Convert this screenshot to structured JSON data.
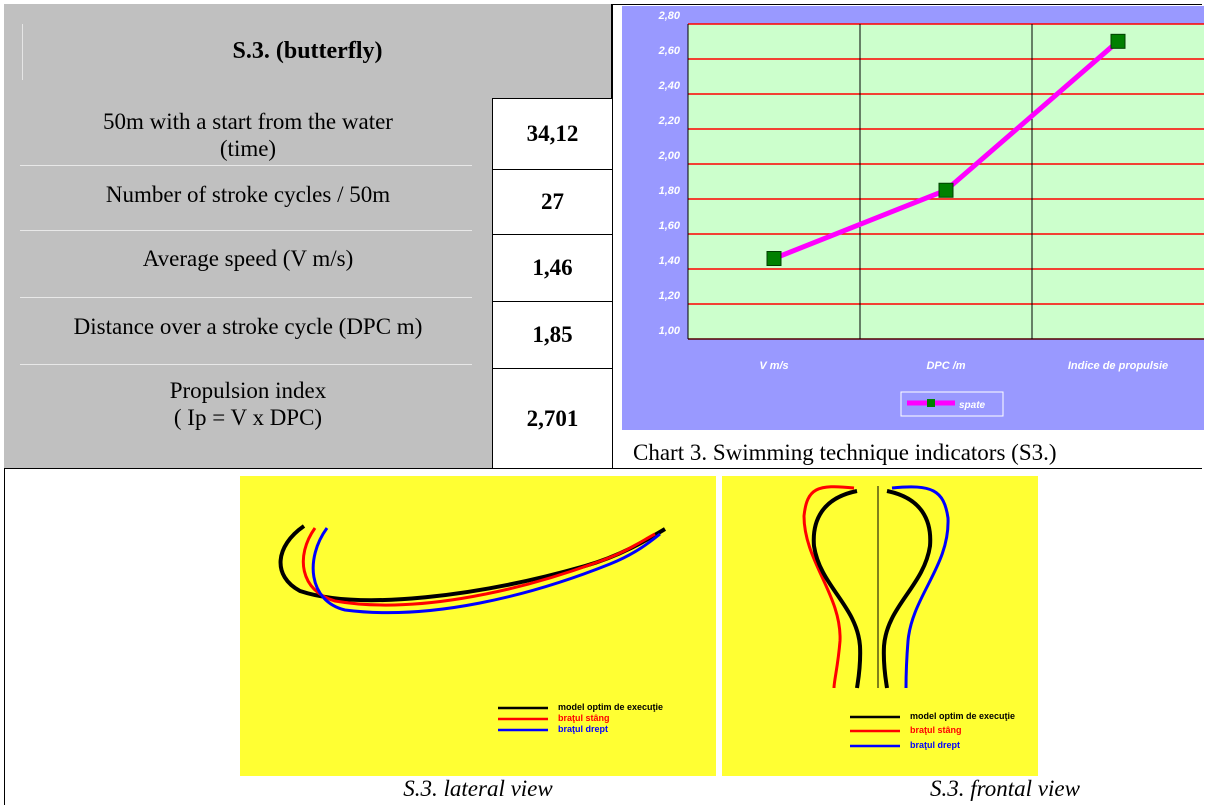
{
  "table": {
    "title": "S.3. (butterfly)",
    "rows": [
      {
        "label_lines": [
          "50m with a start from the water",
          "(time)"
        ],
        "value": "34,12"
      },
      {
        "label_lines": [
          "Number of stroke cycles / 50m"
        ],
        "value": "27"
      },
      {
        "label_lines": [
          "Average speed (V m/s)"
        ],
        "value": "1,46"
      },
      {
        "label_lines": [
          "Distance over a stroke cycle (DPC m)"
        ],
        "value": "1,85"
      },
      {
        "label_lines": [
          "Propulsion index",
          "( Ip = V x DPC)"
        ],
        "value": "2,701"
      }
    ]
  },
  "chart_data": {
    "type": "line",
    "categories": [
      "V  m/s",
      "DPC /m",
      "Indice de propulsie"
    ],
    "series": [
      {
        "name": "spate",
        "values": [
          1.46,
          1.85,
          2.701
        ],
        "color": "#ff00ff",
        "marker_color": "#008000"
      }
    ],
    "ylim": [
      1.0,
      2.8
    ],
    "yticks": [
      "1,00",
      "1,20",
      "1,40",
      "1,60",
      "1,80",
      "2,00",
      "2,20",
      "2,40",
      "2,60",
      "2,80"
    ],
    "plot_bg": "#ccffcc",
    "panel_bg": "#9999ff",
    "gridline_color": "#ff0000",
    "grid": true,
    "legend_position": "bottom"
  },
  "chart_caption": "Chart 3. Swimming technique indicators (S3.)",
  "diagrams": {
    "lateral": {
      "caption": "S.3. lateral view",
      "legend": [
        "model optim de execuţie",
        "braţul stâng",
        "braţul drept"
      ]
    },
    "frontal": {
      "caption": "S.3. frontal view",
      "legend": [
        "model optim de execuţie",
        "braţul stâng",
        "braţul drept"
      ]
    },
    "colors": {
      "optimal": "#000000",
      "left_arm": "#ff0000",
      "right_arm": "#0000ff",
      "background": "#ffff33"
    }
  }
}
